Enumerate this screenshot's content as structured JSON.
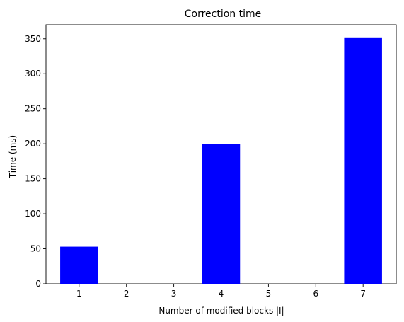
{
  "chart_data": {
    "type": "bar",
    "title": "Correction time",
    "xlabel": "Number of modified blocks |I|",
    "ylabel": "Time (ms)",
    "x_ticks": [
      "1",
      "2",
      "3",
      "4",
      "5",
      "6",
      "7"
    ],
    "xlim": [
      0.3,
      7.7
    ],
    "ylim": [
      0,
      370
    ],
    "y_ticks": [
      0,
      50,
      100,
      150,
      200,
      250,
      300,
      350
    ],
    "bar_color": "#0000ff",
    "bar_width": 0.8,
    "grid": false,
    "bars": [
      {
        "x": 1,
        "value": 53
      },
      {
        "x": 4,
        "value": 200
      },
      {
        "x": 7,
        "value": 352
      }
    ]
  }
}
